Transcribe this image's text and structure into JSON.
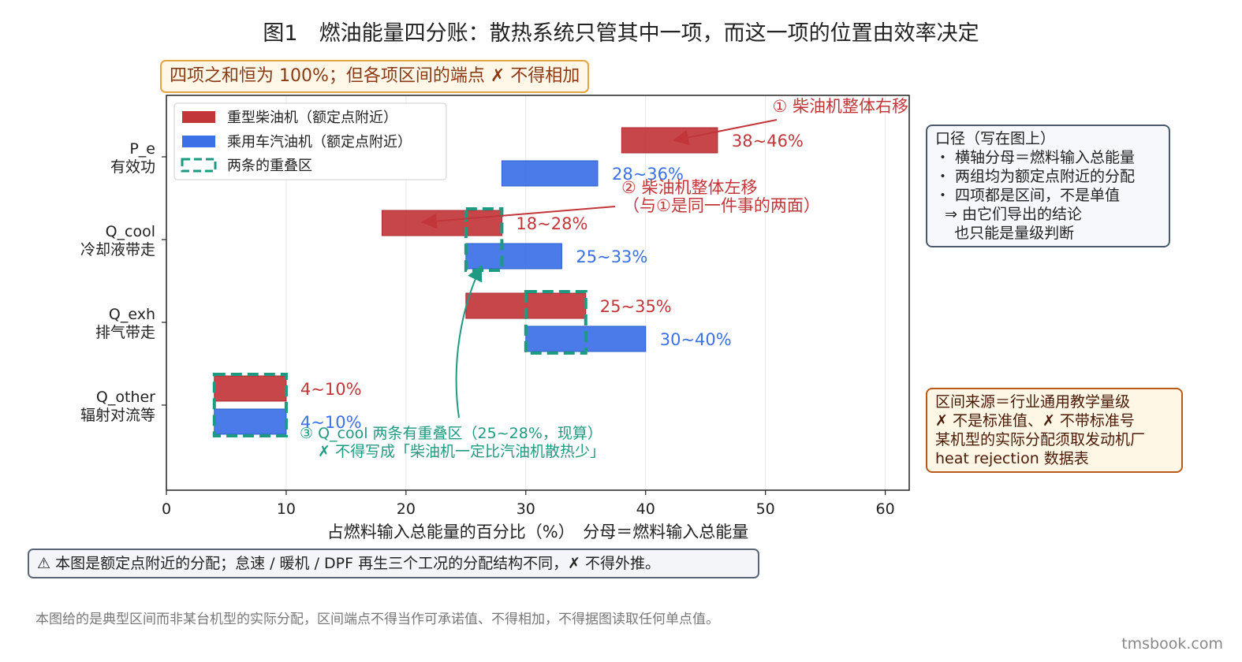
{
  "title": "图1　燃油能量四分账：散热系统只管其中一项，而这一项的位置由效率决定",
  "top_note": "四项之和恒为 100%；但各项区间的端点 ✗ 不得相加",
  "colors": {
    "diesel": "#c2363a",
    "gasoline": "#3b70e6",
    "overlap": "#1f9a82",
    "note_orange": "#e5a443"
  },
  "chart_data": {
    "type": "bar",
    "orientation": "horizontal-range",
    "xlabel": "占燃料输入总能量的百分比（%）　分母＝燃料输入总能量",
    "xlim": [
      0,
      62
    ],
    "xticks": [
      0,
      10,
      20,
      30,
      40,
      50,
      60
    ],
    "grid": "vertical",
    "legend_position": "top-left",
    "legend": [
      "重型柴油机（额定点附近）",
      "乘用车汽油机（额定点附近）",
      "两条的重叠区"
    ],
    "categories": [
      {
        "line1": "P_e",
        "line2": "有效功"
      },
      {
        "line1": "Q_cool",
        "line2": "冷却液带走"
      },
      {
        "line1": "Q_exh",
        "line2": "排气带走"
      },
      {
        "line1": "Q_other",
        "line2": "辐射对流等"
      }
    ],
    "series": [
      {
        "name": "重型柴油机（额定点附近）",
        "ranges": [
          [
            38,
            46
          ],
          [
            18,
            28
          ],
          [
            25,
            35
          ],
          [
            4,
            10
          ]
        ],
        "labels": [
          "38~46%",
          "18~28%",
          "25~35%",
          "4~10%"
        ]
      },
      {
        "name": "乘用车汽油机（额定点附近）",
        "ranges": [
          [
            28,
            36
          ],
          [
            25,
            33
          ],
          [
            30,
            40
          ],
          [
            4,
            10
          ]
        ],
        "labels": [
          "28~36%",
          "25~33%",
          "30~40%",
          "4~10%"
        ]
      }
    ],
    "overlaps": [
      {
        "category": 1,
        "range": [
          25,
          28
        ]
      },
      {
        "category": 2,
        "range": [
          30,
          35
        ]
      },
      {
        "category": 3,
        "range": [
          4,
          10
        ]
      }
    ],
    "annotations": [
      {
        "text": "① 柴油机整体右移"
      },
      {
        "text": "② 柴油机整体左移",
        "text2": "（与①是同一件事的两面）"
      },
      {
        "text": "③ Q_cool 两条有重叠区（25~28%，现算）",
        "text2": "✗ 不得写成「柴油机一定比汽油机散热少」"
      }
    ]
  },
  "caliber_box": {
    "title": "口径（写在图上）",
    "items": [
      "・ 横轴分母＝燃料输入总能量",
      "・ 两组均为额定点附近的分配",
      "・ 四项都是区间，不是单值",
      "  ⇒ 由它们导出的结论",
      "    也只能是量级判断"
    ]
  },
  "source_box": {
    "lines": [
      "区间来源＝行业通用教学量级",
      "✗ 不是标准值、✗ 不带标准号",
      "某机型的实际分配须取发动机厂",
      "heat rejection 数据表"
    ]
  },
  "warning": "⚠ 本图是额定点附近的分配；怠速 / 暖机 / DPF 再生三个工况的分配结构不同，✗ 不得外推。",
  "footnote": "本图给的是典型区间而非某台机型的实际分配，区间端点不得当作可承诺值、不得相加，不得据图读取任何单点值。",
  "watermark": "tmsbook.com"
}
